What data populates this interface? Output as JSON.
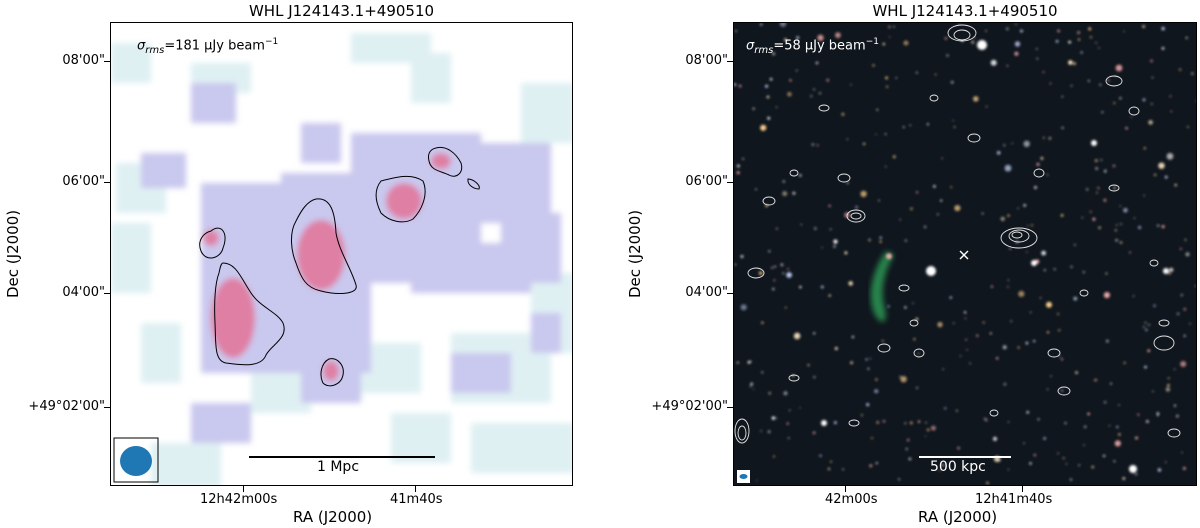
{
  "left_panel": {
    "title": "WHL J124143.1+490510",
    "sigma_prefix": "σ",
    "sigma_sub": "rms",
    "sigma_value": "=181 μJy beam",
    "sigma_sup": "−1",
    "scale_bar_label": "1 Mpc",
    "x_axis_label": "RA (J2000)",
    "y_axis_label": "Dec (J2000)",
    "x_ticks": [
      "12h42m00s",
      "41m40s"
    ],
    "y_ticks": [
      "08'00\"",
      "06'00\"",
      "04'00\"",
      "+49°02'00\""
    ],
    "colors": {
      "low": "#dff0f3",
      "mid": "#c9c8ee",
      "high": "#df7fa4",
      "beam": "#1f77b4"
    }
  },
  "right_panel": {
    "title": "WHL J124143.1+490510",
    "sigma_prefix": "σ",
    "sigma_sub": "rms",
    "sigma_value": "=58 μJy beam",
    "sigma_sup": "−1",
    "scale_bar_label": "500 kpc",
    "x_axis_label": "RA (J2000)",
    "y_axis_label": "Dec (J2000)",
    "x_ticks": [
      "42m00s",
      "12h41m40s"
    ],
    "y_ticks": [
      "08'00\"",
      "06'00\"",
      "04'00\"",
      "+49°02'00\""
    ],
    "colors": {
      "background": "#0e1114",
      "contour": "#e6e6e6",
      "relic": "#2fa85a"
    }
  }
}
